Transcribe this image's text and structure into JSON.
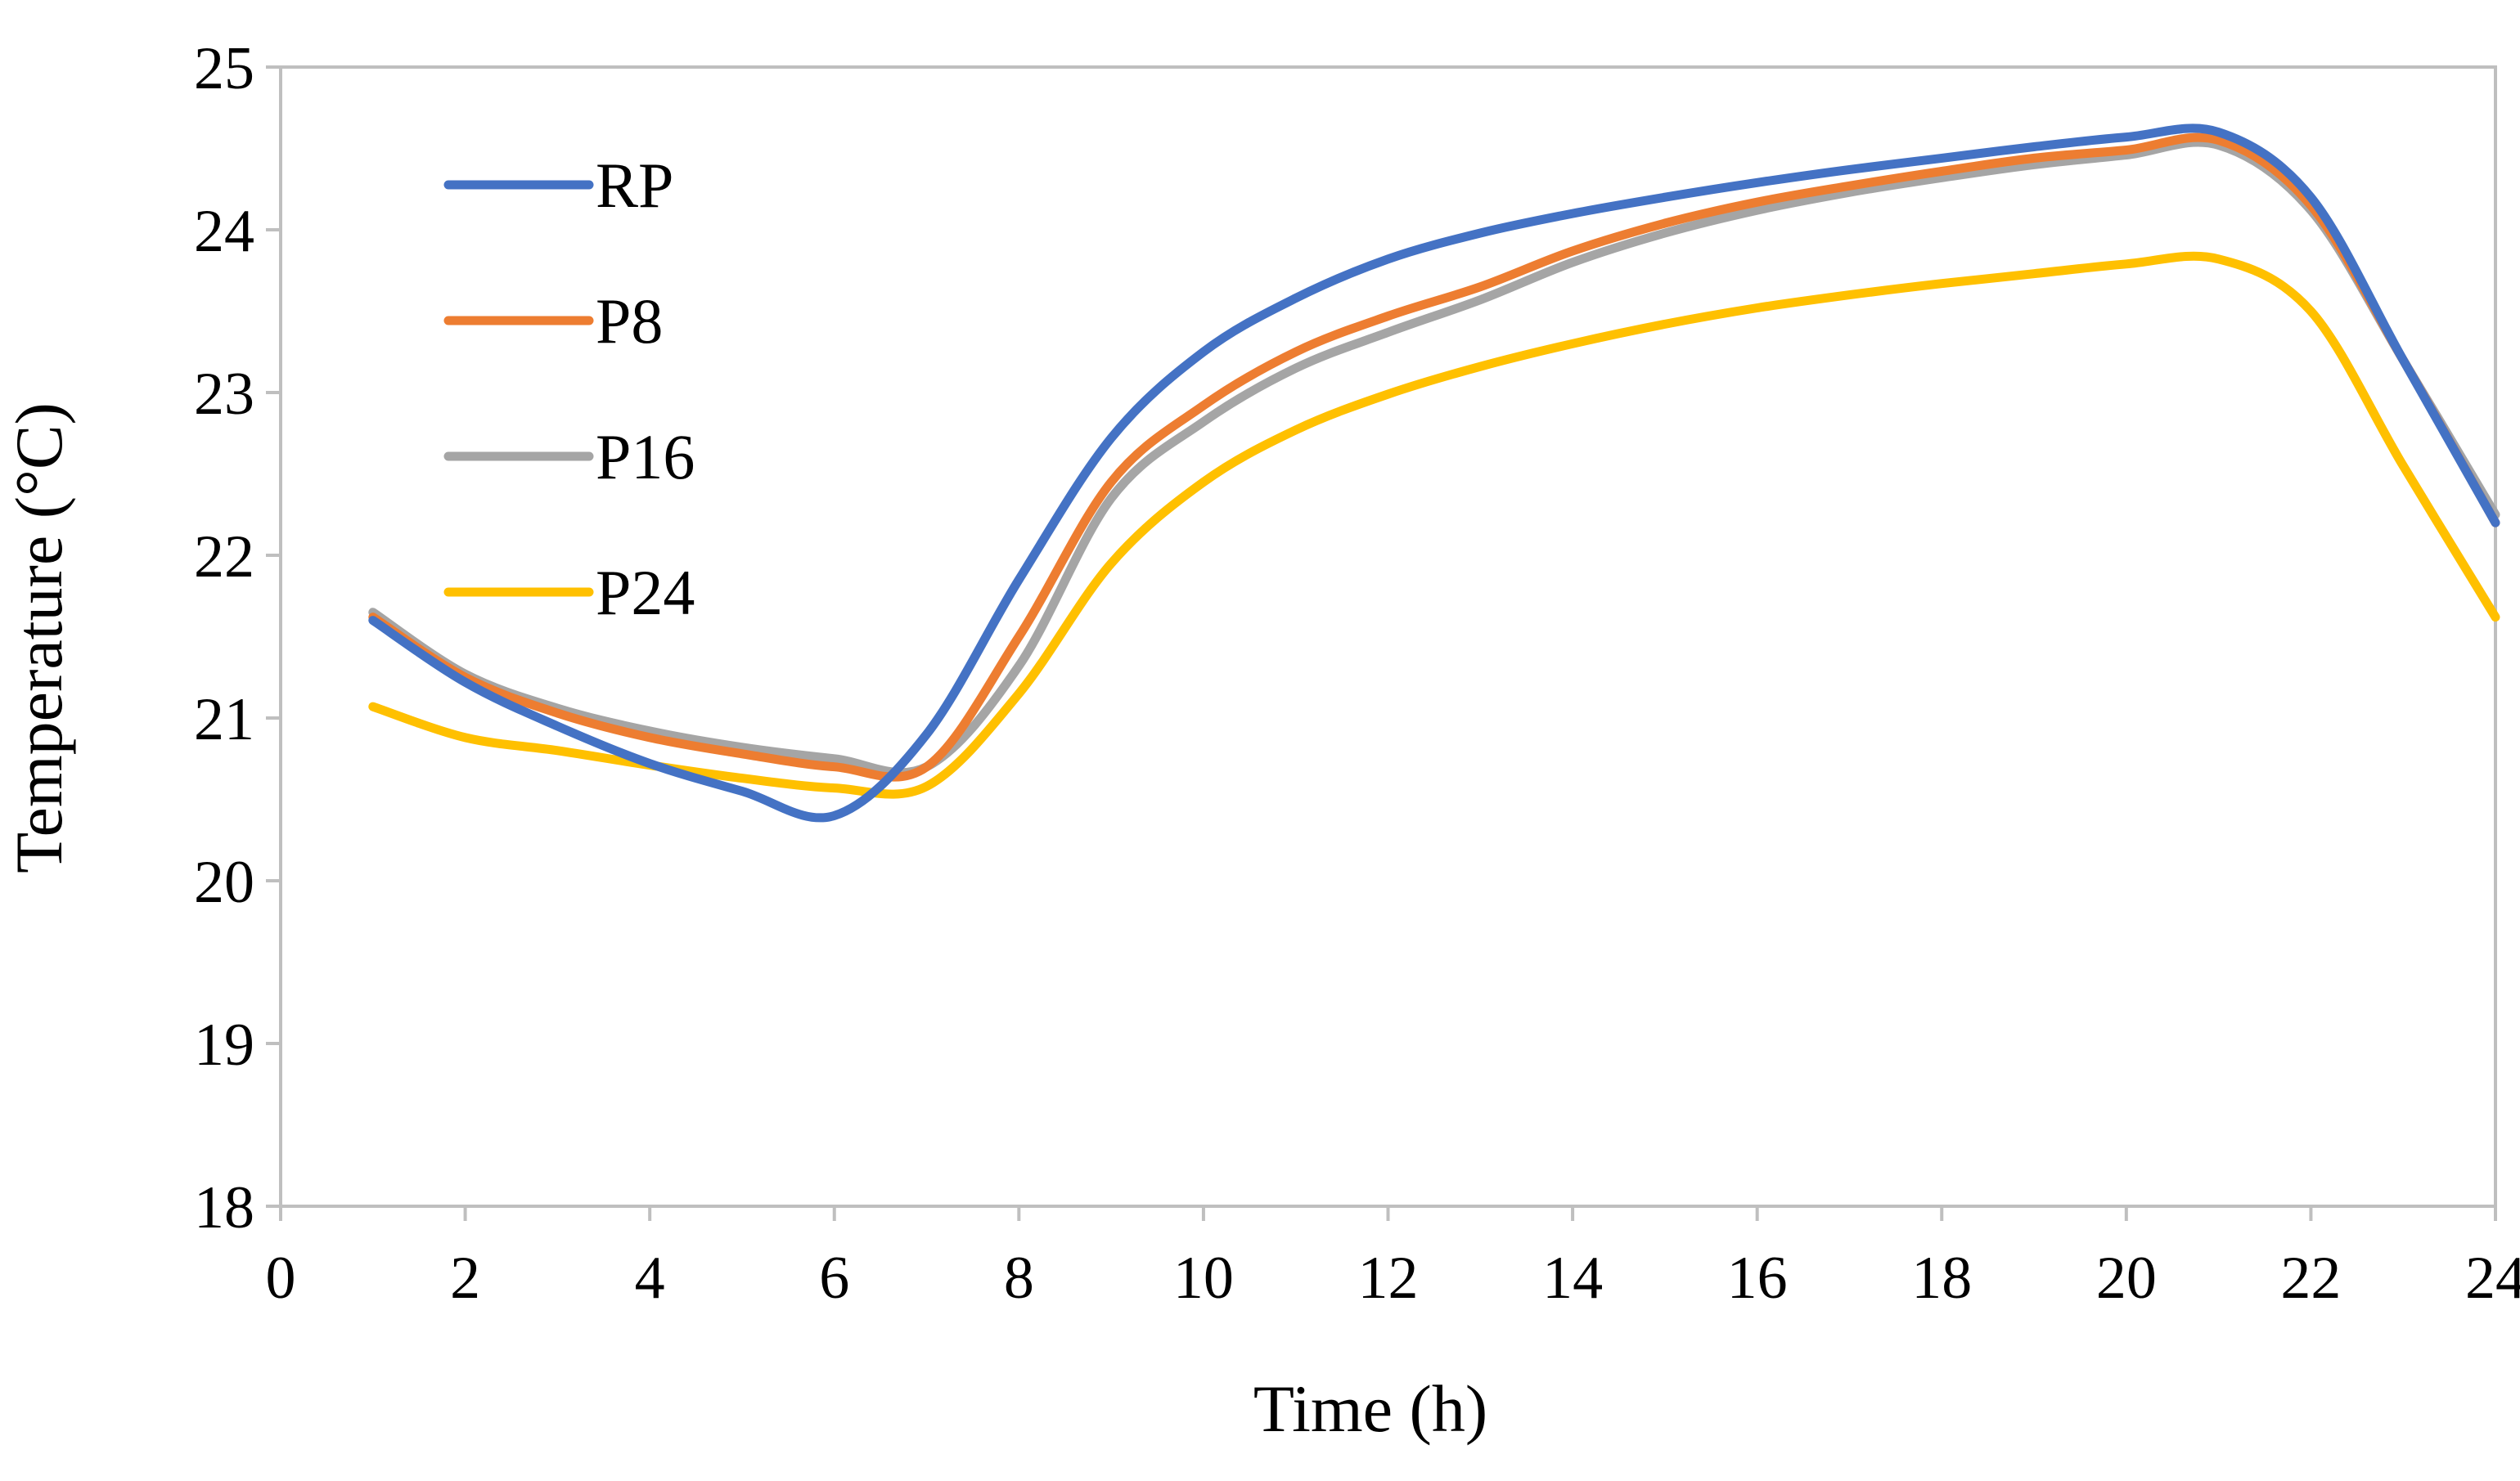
{
  "chart_data": {
    "type": "line",
    "xlabel": "Time (h)",
    "ylabel": "Temperature (°C)",
    "xlim": [
      0,
      24
    ],
    "ylim": [
      18,
      25
    ],
    "xticks": [
      0,
      2,
      4,
      6,
      8,
      10,
      12,
      14,
      16,
      18,
      20,
      22,
      24
    ],
    "yticks": [
      18,
      19,
      20,
      21,
      22,
      23,
      24,
      25
    ],
    "grid": false,
    "legend_position": "top-left",
    "x": [
      1,
      2,
      3,
      4,
      5,
      6,
      7,
      8,
      9,
      10,
      11,
      12,
      13,
      14,
      15,
      16,
      17,
      18,
      19,
      20,
      21,
      22,
      23,
      24
    ],
    "series": [
      {
        "name": "RP",
        "color": "#4472C4",
        "values": [
          21.6,
          21.22,
          20.95,
          20.72,
          20.55,
          20.4,
          20.9,
          21.85,
          22.72,
          23.25,
          23.58,
          23.82,
          23.98,
          24.1,
          24.2,
          24.29,
          24.37,
          24.44,
          24.51,
          24.57,
          24.6,
          24.2,
          23.2,
          22.2
        ]
      },
      {
        "name": "P8",
        "color": "#ED7D31",
        "values": [
          21.62,
          21.25,
          21.03,
          20.88,
          20.78,
          20.7,
          20.7,
          21.5,
          22.45,
          22.92,
          23.25,
          23.47,
          23.65,
          23.87,
          24.04,
          24.17,
          24.27,
          24.36,
          24.44,
          24.49,
          24.55,
          24.15,
          23.2,
          22.2
        ]
      },
      {
        "name": "P16",
        "color": "#A5A5A5",
        "values": [
          21.65,
          21.27,
          21.06,
          20.92,
          20.82,
          20.75,
          20.7,
          21.32,
          22.35,
          22.82,
          23.15,
          23.37,
          23.57,
          23.8,
          23.98,
          24.12,
          24.23,
          24.32,
          24.4,
          24.46,
          24.52,
          24.12,
          23.2,
          22.25
        ]
      },
      {
        "name": "P24",
        "color": "#FFC000",
        "values": [
          21.07,
          20.88,
          20.8,
          20.71,
          20.63,
          20.57,
          20.58,
          21.15,
          21.95,
          22.45,
          22.77,
          22.99,
          23.16,
          23.3,
          23.42,
          23.52,
          23.6,
          23.67,
          23.73,
          23.79,
          23.82,
          23.5,
          22.55,
          21.62
        ]
      }
    ]
  }
}
